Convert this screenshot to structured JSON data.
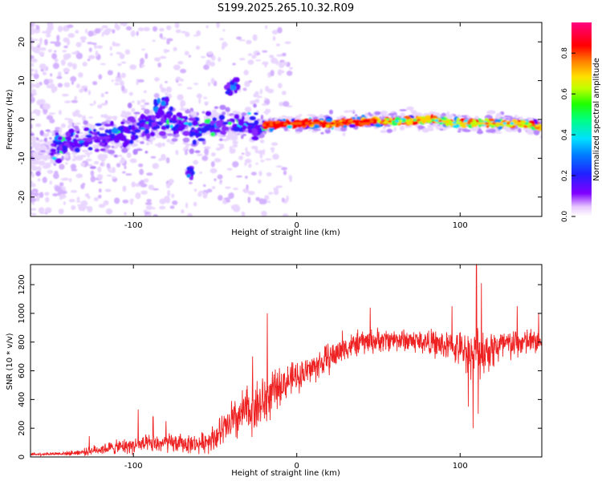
{
  "title": "S199.2025.265.10.32.R09",
  "chart_data": [
    {
      "type": "heatmap",
      "xlabel": "Height of straight line (km)",
      "ylabel": "Frequency (Hz)",
      "xlim": [
        -163,
        150
      ],
      "ylim": [
        -25,
        25
      ],
      "xticks": [
        -100,
        0,
        100
      ],
      "yticks": [
        -20,
        -10,
        0,
        10,
        20
      ],
      "colorbar": {
        "label": "Normalized spectral amplitude",
        "range": [
          0,
          0.95
        ],
        "ticks": [
          0.0,
          0.2,
          0.4,
          0.6,
          0.8
        ],
        "tick_labels": [
          "0.0",
          "0.2",
          "0.4",
          "0.6",
          "0.8"
        ]
      },
      "ridge": {
        "description_points_x": [
          -160,
          -140,
          -120,
          -100,
          -80,
          -60,
          -40,
          -25,
          -20,
          0,
          20,
          40,
          60,
          80,
          100,
          120,
          140,
          150
        ],
        "description_points_f": [
          -9,
          -6,
          -5,
          -3,
          0,
          -3,
          -1,
          -2,
          -1.5,
          -1,
          -1,
          -0.5,
          -0.5,
          0,
          -1,
          -1,
          -1,
          -2
        ]
      }
    },
    {
      "type": "line",
      "series_name": "SNR",
      "xlabel": "Height of straight line (km)",
      "ylabel": "SNR (10 * v/v)",
      "xlim": [
        -163,
        150
      ],
      "ylim": [
        0,
        1340
      ],
      "xticks": [
        -100,
        0,
        100
      ],
      "yticks": [
        0,
        200,
        400,
        600,
        800,
        1000,
        1200
      ],
      "envelope": {
        "x": [
          -163,
          -140,
          -130,
          -120,
          -100,
          -80,
          -60,
          -50,
          -40,
          -30,
          -20,
          -15,
          -10,
          0,
          10,
          20,
          30,
          40,
          60,
          80,
          100,
          110,
          120,
          130,
          140,
          150
        ],
        "mean": [
          18,
          25,
          35,
          55,
          80,
          95,
          90,
          140,
          230,
          330,
          380,
          440,
          500,
          560,
          620,
          690,
          760,
          800,
          820,
          800,
          750,
          720,
          760,
          780,
          800,
          800
        ],
        "noise": [
          10,
          15,
          25,
          40,
          60,
          70,
          65,
          100,
          150,
          180,
          200,
          150,
          130,
          110,
          110,
          110,
          90,
          90,
          80,
          90,
          120,
          190,
          150,
          120,
          100,
          90
        ]
      },
      "spikes": [
        {
          "x": -127,
          "y": 145
        },
        {
          "x": -97,
          "y": 330
        },
        {
          "x": -88,
          "y": 280
        },
        {
          "x": -80,
          "y": 250
        },
        {
          "x": -40,
          "y": 390
        },
        {
          "x": -27,
          "y": 700
        },
        {
          "x": -18,
          "y": 1000
        },
        {
          "x": 28,
          "y": 880
        },
        {
          "x": 45,
          "y": 1040
        },
        {
          "x": 95,
          "y": 1050
        },
        {
          "x": 105,
          "y": 1180
        },
        {
          "x": 110,
          "y": 1340
        },
        {
          "x": 113,
          "y": 1210
        },
        {
          "x": 135,
          "y": 1050
        },
        {
          "x": 148,
          "y": 1000
        }
      ],
      "dips": [
        {
          "x": 105,
          "y": 350
        },
        {
          "x": 108,
          "y": 200
        },
        {
          "x": 111,
          "y": 300
        }
      ],
      "line_color": "#ee2222"
    }
  ]
}
